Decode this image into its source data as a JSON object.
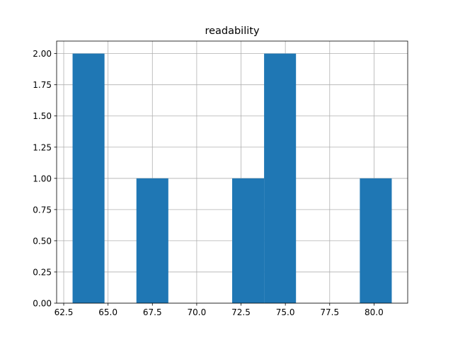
{
  "chart_data": {
    "type": "bar",
    "title": "readability",
    "xlabel": "",
    "ylabel": "",
    "xlim": [
      62.1,
      81.9
    ],
    "ylim": [
      0,
      2.1
    ],
    "grid": true,
    "bar_color": "#1f77b4",
    "bins": [
      {
        "x0": 63.0,
        "x1": 64.8,
        "value": 2
      },
      {
        "x0": 64.8,
        "x1": 66.6,
        "value": 0
      },
      {
        "x0": 66.6,
        "x1": 68.4,
        "value": 1
      },
      {
        "x0": 68.4,
        "x1": 70.2,
        "value": 0
      },
      {
        "x0": 70.2,
        "x1": 72.0,
        "value": 0
      },
      {
        "x0": 72.0,
        "x1": 73.8,
        "value": 1
      },
      {
        "x0": 73.8,
        "x1": 75.6,
        "value": 2
      },
      {
        "x0": 75.6,
        "x1": 77.4,
        "value": 0
      },
      {
        "x0": 77.4,
        "x1": 79.2,
        "value": 0
      },
      {
        "x0": 79.2,
        "x1": 81.0,
        "value": 1
      }
    ],
    "x_ticks": [
      62.5,
      65.0,
      67.5,
      70.0,
      72.5,
      75.0,
      77.5,
      80.0
    ],
    "x_tick_labels": [
      "62.5",
      "65.0",
      "67.5",
      "70.0",
      "72.5",
      "75.0",
      "77.5",
      "80.0"
    ],
    "y_ticks": [
      0,
      0.25,
      0.5,
      0.75,
      1.0,
      1.25,
      1.5,
      1.75,
      2.0
    ],
    "y_tick_labels": [
      "0.00",
      "0.25",
      "0.50",
      "0.75",
      "1.00",
      "1.25",
      "1.50",
      "1.75",
      "2.00"
    ]
  }
}
